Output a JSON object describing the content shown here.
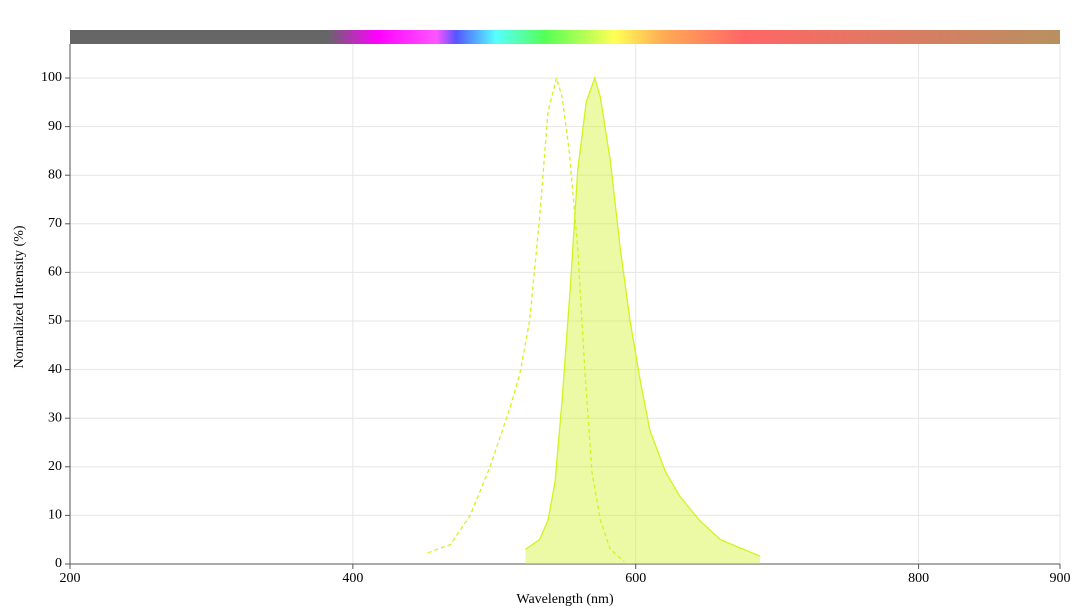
{
  "chart_data": {
    "type": "line",
    "xlabel": "Wavelength (nm)",
    "ylabel": "Normalized Intensity (%)",
    "xlim": [
      200,
      900
    ],
    "ylim": [
      0,
      100
    ],
    "xticks": [
      200,
      400,
      600,
      800,
      900
    ],
    "yticks": [
      0,
      10,
      20,
      30,
      40,
      50,
      60,
      70,
      80,
      90,
      100
    ],
    "grid": true,
    "series": [
      {
        "color": "#d2f31e",
        "style": "dashed",
        "fill": false,
        "x": [
          453,
          469,
          483,
          497,
          511,
          518,
          525,
          532,
          538,
          544,
          548,
          553,
          559,
          564,
          569,
          575,
          582,
          592
        ],
        "values": [
          2.3,
          4,
          10,
          20,
          32,
          39,
          50,
          71,
          93,
          100,
          96,
          85,
          65,
          40,
          19,
          9,
          3,
          0.5
        ]
      },
      {
        "color": "#d2f31e",
        "style": "solid",
        "fill": true,
        "x": [
          522,
          532,
          538,
          543,
          548,
          554,
          559,
          565,
          571,
          575,
          582,
          589,
          596,
          603,
          610,
          621,
          631,
          645,
          660,
          674,
          688
        ],
        "values": [
          3,
          5,
          9,
          17,
          34,
          58,
          81,
          95,
          100,
          96,
          83,
          65,
          50,
          38,
          27.5,
          19,
          14,
          9,
          5,
          3.3,
          1.6
        ]
      }
    ]
  }
}
